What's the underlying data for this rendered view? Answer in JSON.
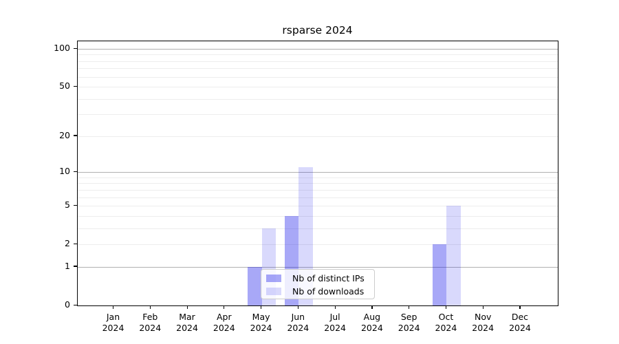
{
  "chart_data": {
    "type": "bar",
    "title": "rsparse 2024",
    "categories": [
      "Jan",
      "Feb",
      "Mar",
      "Apr",
      "May",
      "Jun",
      "Jul",
      "Aug",
      "Sep",
      "Oct",
      "Nov",
      "Dec"
    ],
    "x_year": "2024",
    "series": [
      {
        "name": "Nb of distinct IPs",
        "color": "rgba(0,0,232,0.34)",
        "values": [
          0,
          0,
          0,
          0,
          1,
          4,
          0,
          0,
          0,
          2,
          0,
          0
        ]
      },
      {
        "name": "Nb of downloads",
        "color": "rgba(0,0,232,0.15)",
        "values": [
          0,
          0,
          0,
          0,
          3,
          11,
          0,
          0,
          0,
          5,
          0,
          0
        ]
      }
    ],
    "xlabel": "",
    "ylabel": "",
    "y_scale": "log1p",
    "ylim": [
      0,
      113
    ],
    "y_ticks": [
      0,
      1,
      2,
      5,
      10,
      20,
      50,
      100
    ],
    "grid": {
      "major": [
        1,
        10,
        100
      ],
      "minor": [
        2,
        3,
        4,
        5,
        6,
        7,
        8,
        9,
        20,
        30,
        40,
        50,
        60,
        70,
        80,
        90
      ],
      "major_color": "#b0b0b0",
      "minor_color": "#ededed"
    },
    "legend_position": "lower center",
    "frame_color": "#000000",
    "background_color": "#ffffff"
  }
}
